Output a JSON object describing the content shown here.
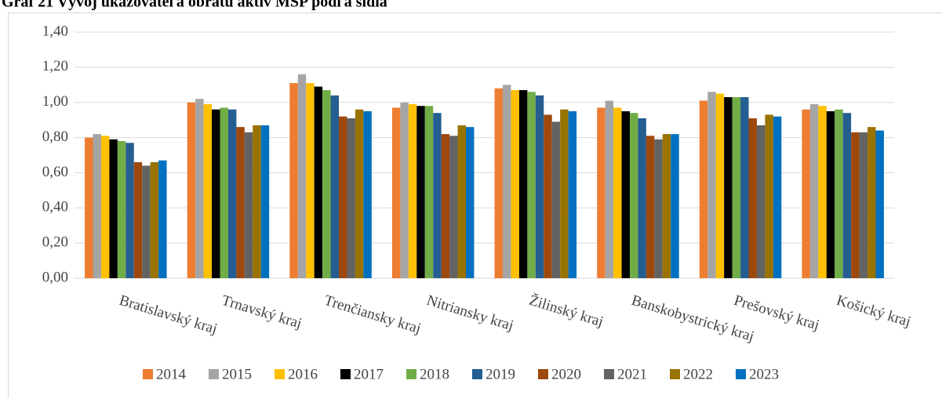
{
  "chart_data": {
    "type": "bar",
    "title": "Graf 21 Vývoj ukazovateľa obratu aktív MSP podľa sídla",
    "categories": [
      "Bratislavský kraj",
      "Trnavský kraj",
      "Trenčiansky kraj",
      "Nitriansky kraj",
      "Žilinský kraj",
      "Banskobystrický kraj",
      "Prešovský kraj",
      "Košický kraj"
    ],
    "series": [
      {
        "name": "2014",
        "color": "#ed7d31",
        "values": [
          0.8,
          1.0,
          1.11,
          0.97,
          1.08,
          0.97,
          1.01,
          0.96
        ]
      },
      {
        "name": "2015",
        "color": "#a5a5a5",
        "values": [
          0.82,
          1.02,
          1.16,
          1.0,
          1.1,
          1.01,
          1.06,
          0.99
        ]
      },
      {
        "name": "2016",
        "color": "#ffc000",
        "values": [
          0.81,
          0.99,
          1.11,
          0.99,
          1.07,
          0.97,
          1.05,
          0.98
        ]
      },
      {
        "name": "2017",
        "color": "#000000",
        "values": [
          0.79,
          0.96,
          1.09,
          0.98,
          1.07,
          0.95,
          1.03,
          0.95
        ]
      },
      {
        "name": "2018",
        "color": "#70ad47",
        "values": [
          0.78,
          0.97,
          1.07,
          0.98,
          1.06,
          0.94,
          1.03,
          0.96
        ]
      },
      {
        "name": "2019",
        "color": "#255e91",
        "values": [
          0.77,
          0.96,
          1.04,
          0.94,
          1.04,
          0.91,
          1.03,
          0.94
        ]
      },
      {
        "name": "2020",
        "color": "#9e480e",
        "values": [
          0.66,
          0.86,
          0.92,
          0.82,
          0.93,
          0.81,
          0.91,
          0.83
        ]
      },
      {
        "name": "2021",
        "color": "#636363",
        "values": [
          0.64,
          0.83,
          0.91,
          0.81,
          0.89,
          0.79,
          0.87,
          0.83
        ]
      },
      {
        "name": "2022",
        "color": "#997300",
        "values": [
          0.66,
          0.87,
          0.96,
          0.87,
          0.96,
          0.82,
          0.93,
          0.86
        ]
      },
      {
        "name": "2023",
        "color": "#0070c0",
        "values": [
          0.67,
          0.87,
          0.95,
          0.86,
          0.95,
          0.82,
          0.92,
          0.84
        ]
      }
    ],
    "ylim": [
      0,
      1.4
    ],
    "yticks": [
      {
        "value": 0,
        "label": "0,00"
      },
      {
        "value": 0.2,
        "label": "0,20"
      },
      {
        "value": 0.4,
        "label": "0,40"
      },
      {
        "value": 0.6,
        "label": "0,60"
      },
      {
        "value": 0.8,
        "label": "0,80"
      },
      {
        "value": 1.0,
        "label": "1,00"
      },
      {
        "value": 1.2,
        "label": "1,20"
      },
      {
        "value": 1.4,
        "label": "1,40"
      }
    ],
    "grid": true,
    "legend": "bottom"
  }
}
